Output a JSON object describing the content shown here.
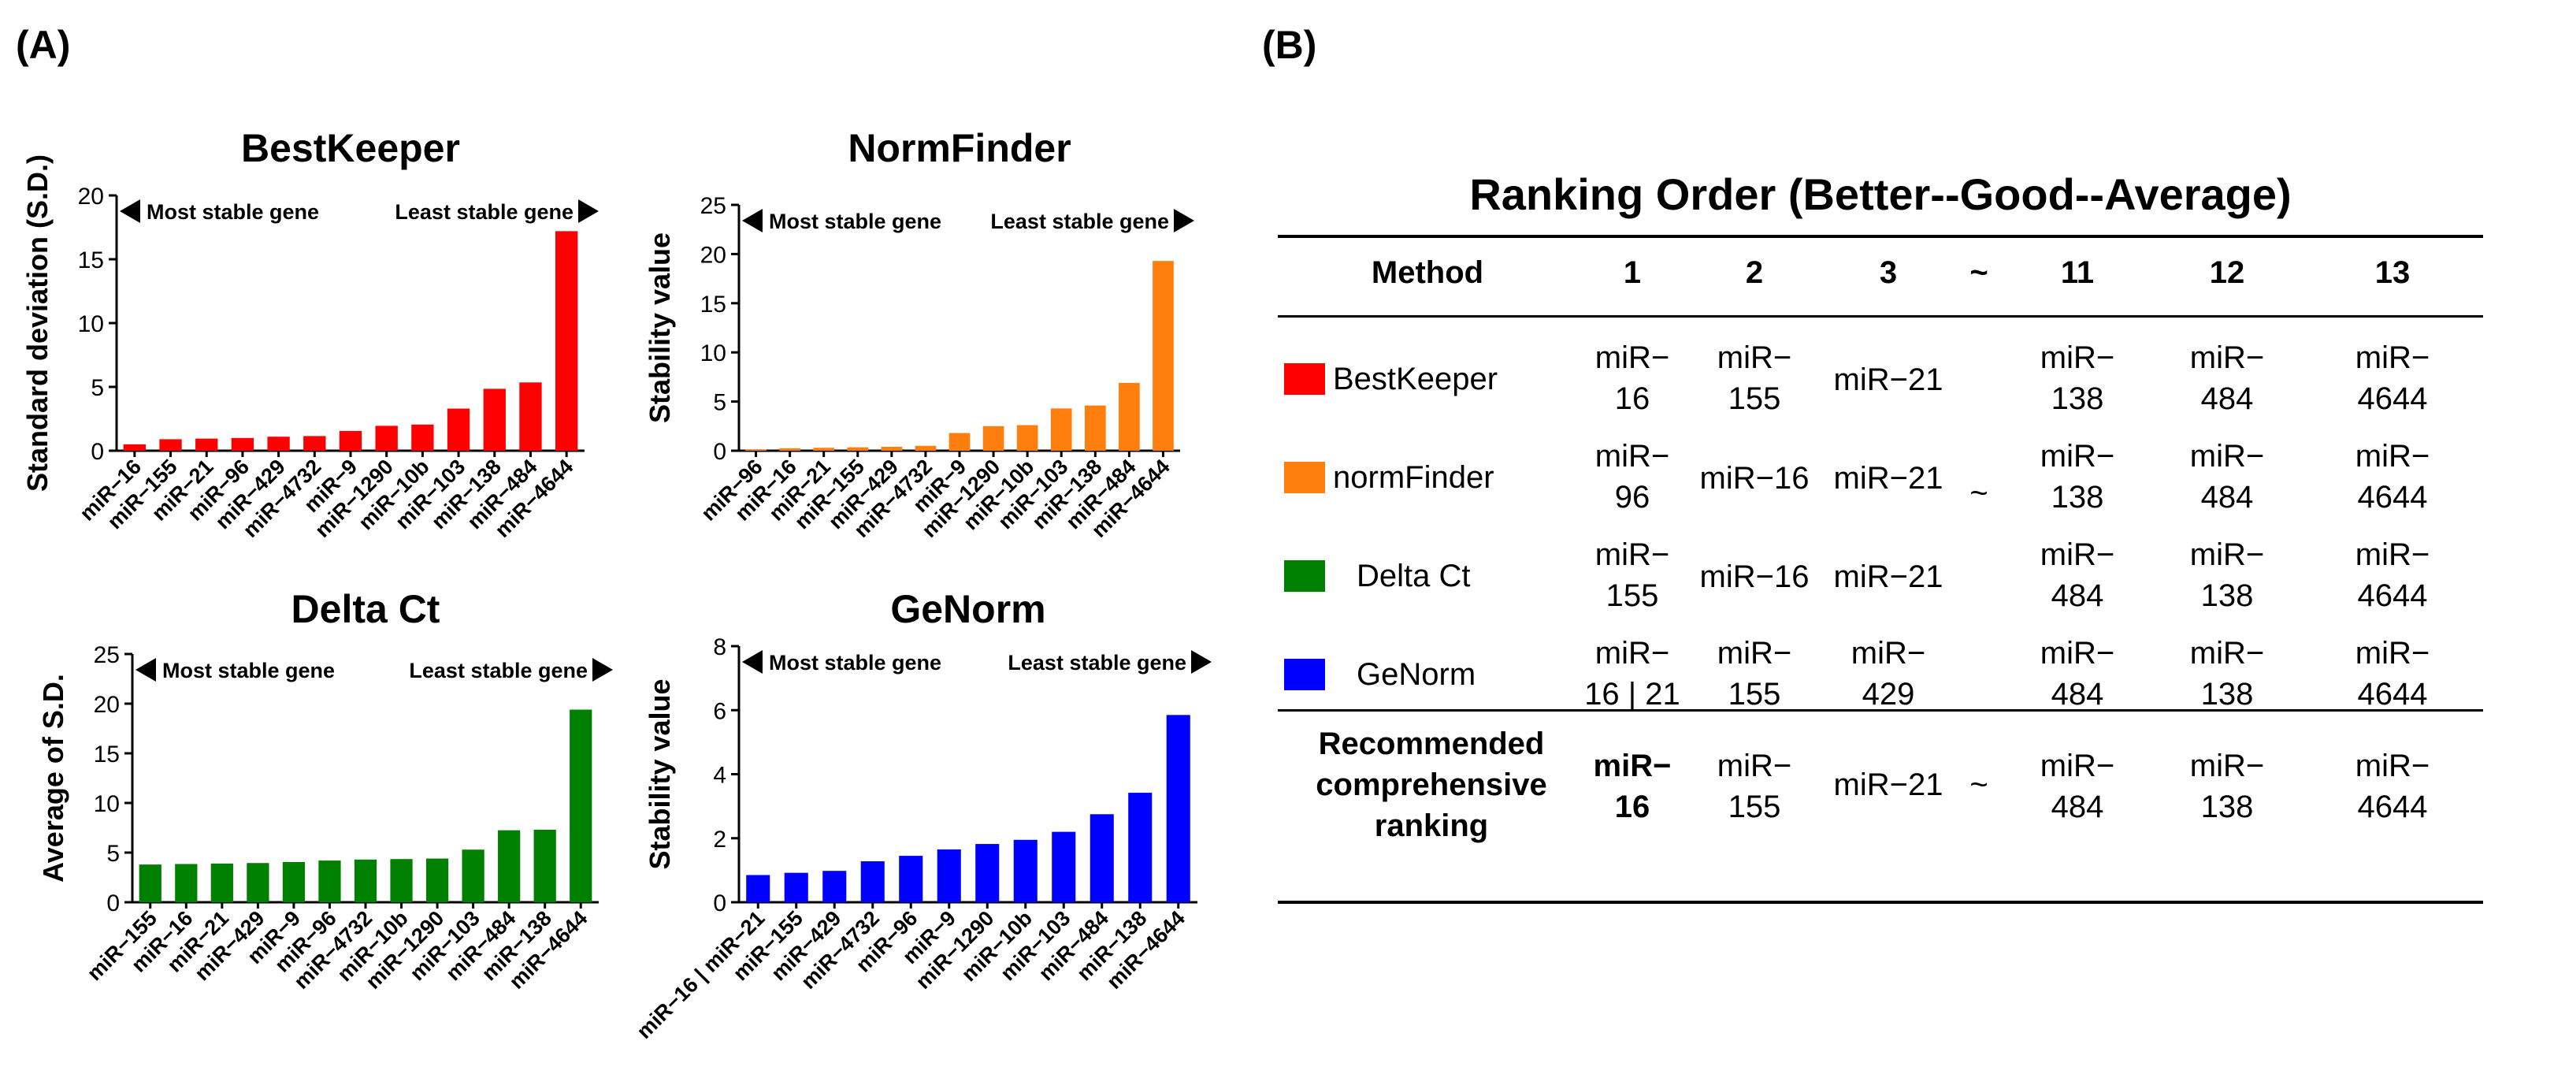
{
  "labels": {
    "panel_a": "(A)",
    "panel_b": "(B)"
  },
  "chart_data": [
    {
      "type": "bar",
      "title": "BestKeeper",
      "ylabel": "Standard deviation (S.D.)",
      "xlabel": "",
      "ylim": [
        0,
        20
      ],
      "yticks": [
        0,
        5,
        10,
        15,
        20
      ],
      "color": "#ff0000",
      "annotation_left": "Most stable gene",
      "annotation_right": "Least stable gene",
      "categories": [
        "miR−16",
        "miR−155",
        "miR−21",
        "miR−96",
        "miR−429",
        "miR−4732",
        "miR−9",
        "miR−1290",
        "miR−10b",
        "miR−103",
        "miR−138",
        "miR−484",
        "miR−4644"
      ],
      "values": [
        0.5,
        0.9,
        0.95,
        1.0,
        1.1,
        1.15,
        1.55,
        1.95,
        2.05,
        3.3,
        4.85,
        5.35,
        17.2
      ]
    },
    {
      "type": "bar",
      "title": "NormFinder",
      "ylabel": "Stability value",
      "xlabel": "",
      "ylim": [
        0,
        25
      ],
      "yticks": [
        0,
        5,
        10,
        15,
        20,
        25
      ],
      "color": "#ff7f0e",
      "annotation_left": "Most stable gene",
      "annotation_right": "Least stable gene",
      "categories": [
        "miR−96",
        "miR−16",
        "miR−21",
        "miR−155",
        "miR−429",
        "miR−4732",
        "miR−9",
        "miR−1290",
        "miR−10b",
        "miR−103",
        "miR−138",
        "miR−484",
        "miR−4644"
      ],
      "values": [
        0.1,
        0.25,
        0.3,
        0.35,
        0.4,
        0.5,
        1.8,
        2.5,
        2.6,
        4.3,
        4.6,
        6.9,
        19.3
      ]
    },
    {
      "type": "bar",
      "title": "Delta Ct",
      "ylabel": "Average of S.D.",
      "xlabel": "",
      "ylim": [
        0,
        25
      ],
      "yticks": [
        0,
        5,
        10,
        15,
        20,
        25
      ],
      "color": "#008000",
      "annotation_left": "Most stable gene",
      "annotation_right": "Least stable gene",
      "categories": [
        "miR−155",
        "miR−16",
        "miR−21",
        "miR−429",
        "miR−9",
        "miR−96",
        "miR−4732",
        "miR−10b",
        "miR−1290",
        "miR−103",
        "miR−484",
        "miR−138",
        "miR−4644"
      ],
      "values": [
        3.8,
        3.85,
        3.9,
        3.95,
        4.05,
        4.2,
        4.3,
        4.35,
        4.4,
        5.3,
        7.25,
        7.3,
        19.4
      ]
    },
    {
      "type": "bar",
      "title": "GeNorm",
      "ylabel": "Stability value",
      "xlabel": "",
      "ylim": [
        0,
        8
      ],
      "yticks": [
        0,
        2,
        4,
        6,
        8
      ],
      "color": "#0000ff",
      "annotation_left": "Most stable gene",
      "annotation_right": "Least stable gene",
      "categories": [
        "miR−16 | miR−21",
        "miR−155",
        "miR−429",
        "miR−4732",
        "miR−96",
        "miR−9",
        "miR−1290",
        "miR−10b",
        "miR−103",
        "miR−484",
        "miR−138",
        "miR−4644"
      ],
      "values": [
        0.85,
        0.92,
        0.98,
        1.28,
        1.45,
        1.65,
        1.82,
        1.95,
        2.2,
        2.75,
        3.42,
        5.85
      ]
    }
  ],
  "ranking_table": {
    "title": "Ranking Order (Better--Good--Average)",
    "headers": [
      "Method",
      "1",
      "2",
      "3",
      "~",
      "11",
      "12",
      "13"
    ],
    "rows": [
      {
        "method": "BestKeeper",
        "color": "#ff0000",
        "cells": [
          [
            "miR−",
            "16"
          ],
          [
            "miR−",
            "155"
          ],
          [
            "miR−21"
          ],
          [
            "miR−",
            "138"
          ],
          [
            "miR−",
            "484"
          ],
          [
            "miR−",
            "4644"
          ]
        ]
      },
      {
        "method": "normFinder",
        "color": "#ff7f0e",
        "cells": [
          [
            "miR−",
            "96"
          ],
          [
            "miR−16"
          ],
          [
            "miR−21"
          ],
          [
            "miR−",
            "138"
          ],
          [
            "miR−",
            "484"
          ],
          [
            "miR−",
            "4644"
          ]
        ]
      },
      {
        "method": "Delta Ct",
        "color": "#008000",
        "cells": [
          [
            "miR−",
            "155"
          ],
          [
            "miR−16"
          ],
          [
            "miR−21"
          ],
          [
            "miR−",
            "484"
          ],
          [
            "miR−",
            "138"
          ],
          [
            "miR−",
            "4644"
          ]
        ]
      },
      {
        "method": "GeNorm",
        "color": "#0000ff",
        "cells": [
          [
            "miR−",
            "16 | 21"
          ],
          [
            "miR−",
            "155"
          ],
          [
            "miR−",
            "429"
          ],
          [
            "miR−",
            "484"
          ],
          [
            "miR−",
            "138"
          ],
          [
            "miR−",
            "4644"
          ]
        ]
      }
    ],
    "tilde_mid": "~",
    "recommended": {
      "label": [
        "Recommended",
        "comprehensive",
        "ranking"
      ],
      "tilde": "~",
      "cells": [
        [
          "miR−",
          "16"
        ],
        [
          "miR−",
          "155"
        ],
        [
          "miR−21"
        ],
        [
          "miR−",
          "484"
        ],
        [
          "miR−",
          "138"
        ],
        [
          "miR−",
          "4644"
        ]
      ]
    }
  }
}
